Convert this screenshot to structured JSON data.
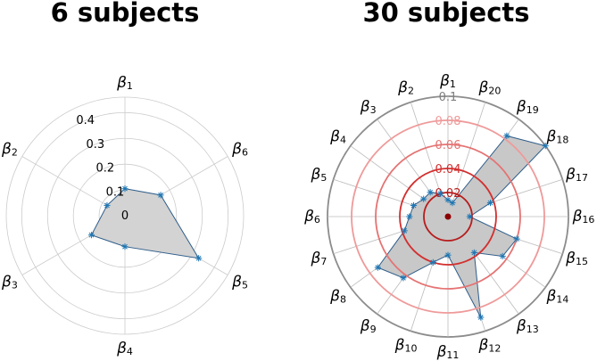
{
  "chart_data": [
    {
      "type": "radar",
      "title": "6 subjects",
      "axes": [
        {
          "symbol": "β",
          "subscript": "1"
        },
        {
          "symbol": "β",
          "subscript": "6"
        },
        {
          "symbol": "β",
          "subscript": "5"
        },
        {
          "symbol": "β",
          "subscript": "4"
        },
        {
          "symbol": "β",
          "subscript": "3"
        },
        {
          "symbol": "β",
          "subscript": "2"
        }
      ],
      "values": [
        0.105,
        0.16,
        0.33,
        0.12,
        0.15,
        0.08
      ],
      "rmax": 0.46,
      "rticks": [
        0,
        0.1,
        0.2,
        0.3,
        0.4
      ],
      "rtick_labels": [
        "0",
        "0.1",
        "0.2",
        "0.3",
        "0.4"
      ],
      "grid": true,
      "colors": {
        "fill": "#d3d3d3",
        "line": "#2f5d8a",
        "marker": "#1f77b4",
        "grid": "#cccccc",
        "rtick_text": "#000000"
      }
    },
    {
      "type": "radar",
      "title": "30 subjects",
      "axes": [
        {
          "symbol": "β",
          "subscript": "1"
        },
        {
          "symbol": "β",
          "subscript": "20"
        },
        {
          "symbol": "β",
          "subscript": "19"
        },
        {
          "symbol": "β",
          "subscript": "18"
        },
        {
          "symbol": "β",
          "subscript": "17"
        },
        {
          "symbol": "β",
          "subscript": "16"
        },
        {
          "symbol": "β",
          "subscript": "15"
        },
        {
          "symbol": "β",
          "subscript": "14"
        },
        {
          "symbol": "β",
          "subscript": "13"
        },
        {
          "symbol": "β",
          "subscript": "12"
        },
        {
          "symbol": "β",
          "subscript": "11"
        },
        {
          "symbol": "β",
          "subscript": "10"
        },
        {
          "symbol": "β",
          "subscript": "9"
        },
        {
          "symbol": "β",
          "subscript": "8"
        },
        {
          "symbol": "β",
          "subscript": "7"
        },
        {
          "symbol": "β",
          "subscript": "6"
        },
        {
          "symbol": "β",
          "subscript": "5"
        },
        {
          "symbol": "β",
          "subscript": "4"
        },
        {
          "symbol": "β",
          "subscript": "3"
        },
        {
          "symbol": "β",
          "subscript": "2"
        }
      ],
      "values": [
        0.014,
        0.012,
        0.083,
        0.1,
        0.037,
        0.018,
        0.06,
        0.056,
        0.037,
        0.088,
        0.032,
        0.04,
        0.063,
        0.072,
        0.038,
        0.032,
        0.03,
        0.025,
        0.025,
        0.02
      ],
      "rmax": 0.1,
      "rticks": [
        0.02,
        0.04,
        0.06,
        0.08
      ],
      "rtick_labels": [
        "0.02",
        "0.04",
        "0.06",
        "0.08",
        "0.1"
      ],
      "highlight_ring_colors": [
        "#b71c1c",
        "#d32f2f",
        "#e57373",
        "#ef9a9a"
      ],
      "grid": true,
      "colors": {
        "fill": "#c8c8c8",
        "line": "#2f5d8a",
        "marker": "#1f77b4",
        "spoke": "#bbbbbb",
        "outer": "#8c8c8c",
        "center_dot": "#8b0000",
        "rtick_outer": "#7f7f7f"
      }
    }
  ]
}
